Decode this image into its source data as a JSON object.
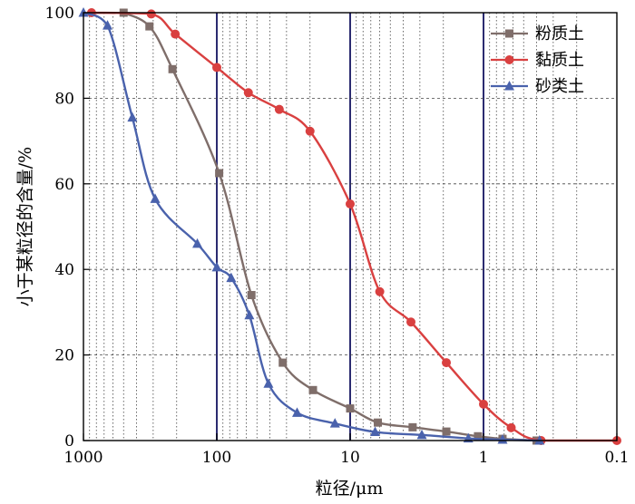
{
  "chart_data": {
    "type": "line",
    "x_scale": "log",
    "x_reversed": true,
    "xlim": [
      1000,
      0.1
    ],
    "ylim": [
      0,
      100
    ],
    "xlabel": "粒径/μm",
    "ylabel": "小于某粒径的含量/%",
    "x_ticks": [
      {
        "value": 1000,
        "label": "1000"
      },
      {
        "value": 100,
        "label": "100"
      },
      {
        "value": 10,
        "label": "10"
      },
      {
        "value": 1,
        "label": "1"
      },
      {
        "value": 0.1,
        "label": "0.1"
      }
    ],
    "y_ticks": [
      {
        "value": 0,
        "label": "0"
      },
      {
        "value": 20,
        "label": "20"
      },
      {
        "value": 40,
        "label": "40"
      },
      {
        "value": 60,
        "label": "60"
      },
      {
        "value": 80,
        "label": "80"
      },
      {
        "value": 100,
        "label": "100"
      }
    ],
    "grid": {
      "x_minor_dotted": true,
      "x_major_solid_color": "#2b2b70",
      "y_dashed": true
    },
    "legend_position": "top-right",
    "series": [
      {
        "name": "粉质土",
        "color": "#7f6e6a",
        "marker": "square",
        "x": [
          500,
          320,
          215,
          96,
          55,
          32,
          19,
          10,
          6.2,
          3.4,
          1.9,
          1.1,
          0.72,
          0.4
        ],
        "y": [
          100,
          96.8,
          86.8,
          62.5,
          34,
          18.2,
          11.8,
          7.5,
          4.2,
          3.1,
          2.1,
          1.0,
          0.4,
          0
        ]
      },
      {
        "name": "黏质土",
        "color": "#d94040",
        "marker": "circle",
        "x": [
          870,
          310,
          205,
          100,
          58,
          34,
          20,
          10,
          6,
          3.5,
          1.9,
          1.0,
          0.62,
          0.37,
          0.1
        ],
        "y": [
          100,
          99.7,
          95,
          87.2,
          81.3,
          77.4,
          72.3,
          55.3,
          34.8,
          27.7,
          18.2,
          8.5,
          3.0,
          0,
          0
        ]
      },
      {
        "name": "砂类土",
        "color": "#4a62ac",
        "marker": "triangle",
        "x": [
          1000,
          660,
          430,
          290,
          140,
          100,
          78,
          57,
          41,
          25,
          13,
          6.5,
          2.9,
          1.3,
          0.72,
          0.38
        ],
        "y": [
          100,
          97,
          75.5,
          56.5,
          46,
          40.5,
          38,
          29.3,
          13.3,
          6.5,
          4,
          2,
          1.3,
          0.5,
          0.2,
          0
        ]
      }
    ]
  }
}
